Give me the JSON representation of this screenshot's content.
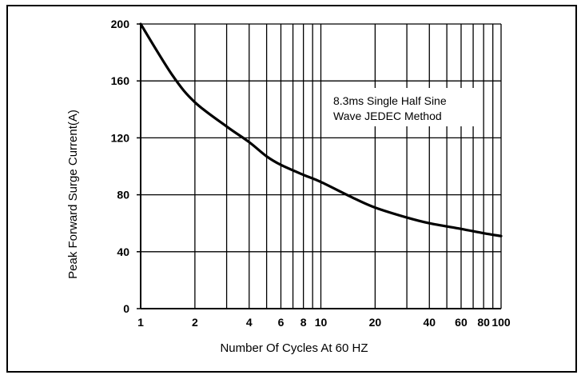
{
  "chart_data": {
    "type": "line",
    "title": "",
    "xlabel": "Number Of Cycles At 60 HZ",
    "ylabel": "Peak Forward Surge Current(A)",
    "x_scale": "log",
    "xlim": [
      1,
      100
    ],
    "ylim": [
      0,
      200
    ],
    "x_ticks": [
      {
        "value": 1,
        "label": "1"
      },
      {
        "value": 2,
        "label": "2"
      },
      {
        "value": 4,
        "label": "4"
      },
      {
        "value": 6,
        "label": "6"
      },
      {
        "value": 8,
        "label": "8"
      },
      {
        "value": 10,
        "label": "10"
      },
      {
        "value": 20,
        "label": "20"
      },
      {
        "value": 40,
        "label": "40"
      },
      {
        "value": 60,
        "label": "60"
      },
      {
        "value": 80,
        "label": "80"
      },
      {
        "value": 100,
        "label": "100"
      }
    ],
    "x_gridlines": [
      1,
      2,
      3,
      4,
      5,
      6,
      7,
      8,
      9,
      10,
      20,
      30,
      40,
      50,
      60,
      70,
      80,
      90,
      100
    ],
    "y_ticks": [
      {
        "value": 0,
        "label": "0"
      },
      {
        "value": 40,
        "label": "40"
      },
      {
        "value": 80,
        "label": "80"
      },
      {
        "value": 120,
        "label": "120"
      },
      {
        "value": 160,
        "label": "160"
      },
      {
        "value": 200,
        "label": "200"
      }
    ],
    "grid": true,
    "annotation": [
      "8.3ms Single Half Sine",
      "Wave  JEDEC Method"
    ],
    "series": [
      {
        "x": [
          1,
          1.5,
          2,
          3,
          4,
          5,
          6,
          8,
          10,
          15,
          20,
          30,
          40,
          60,
          80,
          100
        ],
        "y": [
          200,
          164,
          145,
          128,
          117,
          107,
          101,
          94,
          89,
          78,
          71,
          64,
          60,
          56,
          53,
          51
        ]
      }
    ]
  },
  "colors": {
    "line": "#000000",
    "grid": "#000000",
    "background": "#ffffff"
  }
}
